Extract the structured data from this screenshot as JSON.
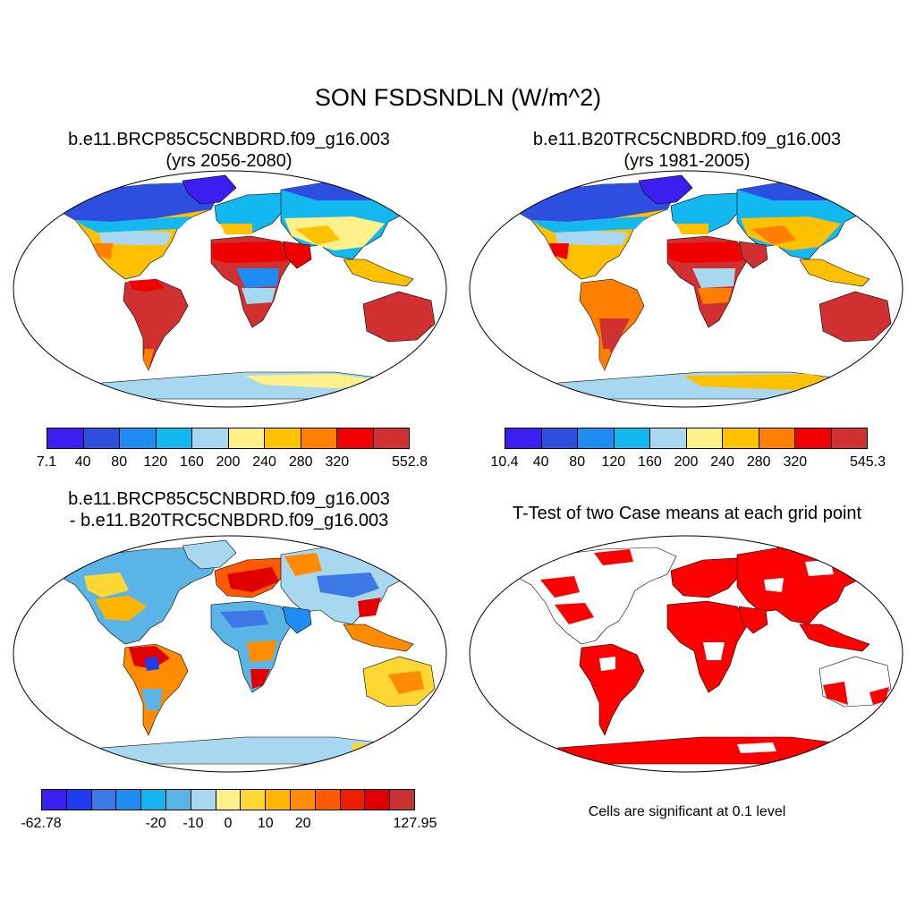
{
  "figure": {
    "title": "SON FSDSNDLN (W/m^2)"
  },
  "panels": [
    {
      "title_line1": "b.e11.BRCP85C5CNBDRD.f09_g16.003",
      "title_line2": "(yrs 2056-2080)",
      "colorbar": {
        "colors": [
          "#3b1ef0",
          "#2d4fe0",
          "#1e8cf0",
          "#14b8f0",
          "#a8d8f0",
          "#fff08a",
          "#ffc000",
          "#ff8000",
          "#f00000",
          "#d03030"
        ],
        "labels": [
          "7.1",
          "40",
          "80",
          "120",
          "160",
          "200",
          "240",
          "280",
          "320",
          "552.8"
        ]
      }
    },
    {
      "title_line1": "b.e11.B20TRC5CNBDRD.f09_g16.003",
      "title_line2": "(yrs 1981-2005)",
      "colorbar": {
        "colors": [
          "#3b1ef0",
          "#2d4fe0",
          "#1e8cf0",
          "#14b8f0",
          "#a8d8f0",
          "#fff08a",
          "#ffc000",
          "#ff8000",
          "#f00000",
          "#d03030"
        ],
        "labels": [
          "10.4",
          "40",
          "80",
          "120",
          "160",
          "200",
          "240",
          "280",
          "320",
          "545.3"
        ]
      }
    },
    {
      "title_line1": "b.e11.BRCP85C5CNBDRD.f09_g16.003",
      "title_line2": "- b.e11.B20TRC5CNBDRD.f09_g16.003",
      "colorbar": {
        "colors": [
          "#3b1ef0",
          "#1e3cf0",
          "#3c78e6",
          "#1e8cf0",
          "#14b4f0",
          "#5ab4e6",
          "#a8d8f0",
          "#fff08a",
          "#ffd732",
          "#ffb400",
          "#ff8c00",
          "#ff5a00",
          "#f01e00",
          "#e00000",
          "#c83232"
        ],
        "labels": [
          "-62.78",
          "-20",
          "-10",
          "0",
          "10",
          "20",
          "127.95"
        ]
      }
    },
    {
      "title_line1": "T-Test of two Case means at each grid point",
      "note": "Cells are significant at 0.1 level"
    }
  ]
}
